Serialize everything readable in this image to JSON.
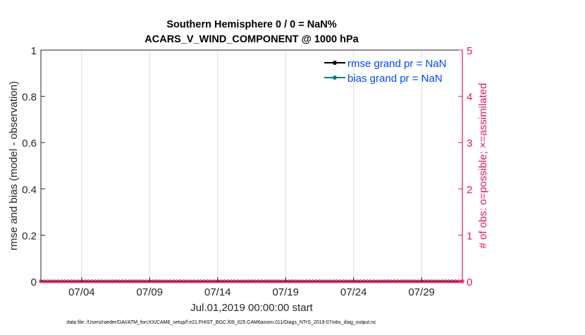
{
  "chart_data": {
    "type": "line",
    "title": [
      "Southern Hemisphere 0 / 0 = NaN%",
      "ACARS_V_WIND_COMPONENT @ 1000 hPa"
    ],
    "xlabel": "Jul.01,2019 00:00:00 start",
    "ylabel": "rmse and bias (model - observation)",
    "ylabel_right": "# of obs: o=possible; ×=assimilated",
    "xlim": [
      "2019-07-01",
      "2019-08-01"
    ],
    "ylim": [
      0,
      1
    ],
    "ylim_right": [
      0,
      5
    ],
    "x_ticks": [
      {
        "date": "2019-07-04",
        "label": "07/04"
      },
      {
        "date": "2019-07-09",
        "label": "07/09"
      },
      {
        "date": "2019-07-14",
        "label": "07/14"
      },
      {
        "date": "2019-07-19",
        "label": "07/19"
      },
      {
        "date": "2019-07-24",
        "label": "07/24"
      },
      {
        "date": "2019-07-29",
        "label": "07/29"
      }
    ],
    "y_ticks": [
      "0",
      "0.2",
      "0.4",
      "0.6",
      "0.8",
      "1"
    ],
    "y_ticks_right": [
      "0",
      "1",
      "2",
      "3",
      "4",
      "5"
    ],
    "grid": "vertical",
    "legend_placement": "top-right",
    "series": [
      {
        "name": "rmse grand pr = NaN",
        "color": "#000000",
        "values": "NaN"
      },
      {
        "name": "bias grand pr = NaN",
        "color": "#008080",
        "values": "NaN"
      }
    ],
    "obs_counts": {
      "interval_hours": 6,
      "possible": 0,
      "assimilated": 0,
      "color": "#e0195a"
    },
    "legend_text_color": "#0047ff"
  },
  "footer": "data file: /Users/raeder/DAI/ATM_forcXX/CAM6_setup/f.e21.FHIST_BGC.f09_025.CAM6assim.011/Diags_NTrS_2019-07/obs_diag_output.nc"
}
